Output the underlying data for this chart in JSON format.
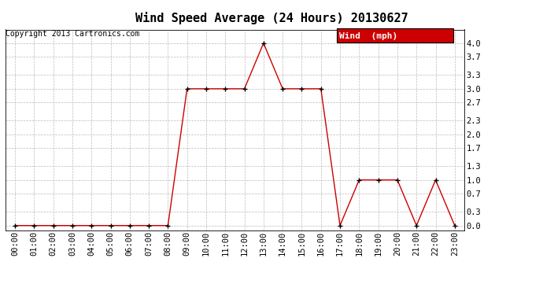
{
  "title": "Wind Speed Average (24 Hours) 20130627",
  "copyright": "Copyright 2013 Cartronics.com",
  "legend_label": "Wind  (mph)",
  "x_labels": [
    "00:00",
    "01:00",
    "02:00",
    "03:00",
    "04:00",
    "05:00",
    "06:00",
    "07:00",
    "08:00",
    "09:00",
    "10:00",
    "11:00",
    "12:00",
    "13:00",
    "14:00",
    "15:00",
    "16:00",
    "17:00",
    "18:00",
    "19:00",
    "20:00",
    "21:00",
    "22:00",
    "23:00"
  ],
  "y_values": [
    0.0,
    0.0,
    0.0,
    0.0,
    0.0,
    0.0,
    0.0,
    0.0,
    0.0,
    3.0,
    3.0,
    3.0,
    3.0,
    4.0,
    3.0,
    3.0,
    3.0,
    0.0,
    1.0,
    1.0,
    1.0,
    0.0,
    1.0,
    0.0
  ],
  "y_ticks": [
    0.0,
    0.3,
    0.7,
    1.0,
    1.3,
    1.7,
    2.0,
    2.3,
    2.7,
    3.0,
    3.3,
    3.7,
    4.0
  ],
  "ylim": [
    -0.1,
    4.3
  ],
  "line_color": "#cc0000",
  "marker_color": "#000000",
  "grid_color": "#bbbbbb",
  "bg_color": "#ffffff",
  "legend_bg": "#cc0000",
  "legend_text_color": "#ffffff",
  "title_fontsize": 11,
  "tick_fontsize": 7.5,
  "copyright_fontsize": 7
}
